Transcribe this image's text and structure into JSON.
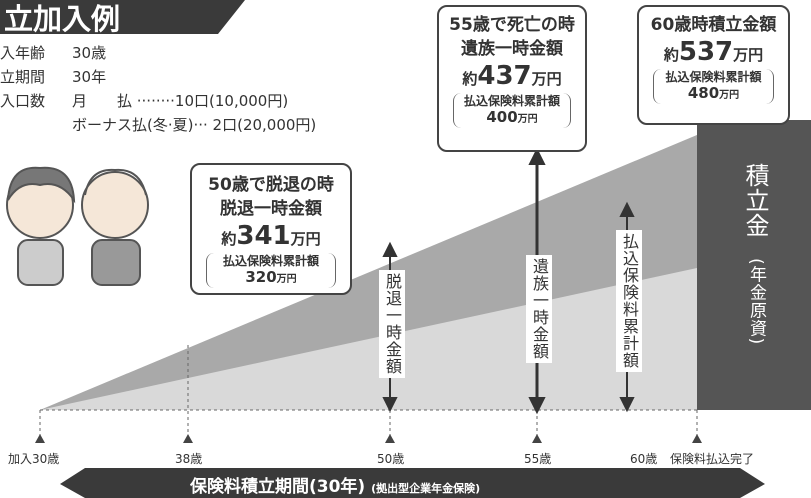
{
  "header": {
    "title": "立加入例"
  },
  "conditions": [
    {
      "label": "入年齢",
      "value": "30歳"
    },
    {
      "label": "立期間",
      "value": "30年"
    },
    {
      "label": "入口数",
      "value": "月　　払 ········10口(10,000円)"
    },
    {
      "value": "ボーナス払(冬·夏)··· 2口(20,000円)"
    }
  ],
  "callouts": [
    {
      "line1": "50歳で脱退の時",
      "line2": "脱退一時金額",
      "prefix": "約",
      "amount": "341",
      "unit": "万円",
      "sub_label": "払込保険料累計額",
      "sub_amount": "320",
      "sub_unit": "万円"
    },
    {
      "line1": "55歳で死亡の時",
      "line2": "遺族一時金額",
      "prefix": "約",
      "amount": "437",
      "unit": "万円",
      "sub_label": "払込保険料累計額",
      "sub_amount": "400",
      "sub_unit": "万円"
    },
    {
      "line1": "60歳時積立金額",
      "prefix": "約",
      "amount": "537",
      "unit": "万円",
      "sub_label": "払込保険料累計額",
      "sub_amount": "480",
      "sub_unit": "万円"
    }
  ],
  "vertical_labels": [
    "脱退一時金額",
    "遺族一時金額",
    "払込保険料累計額",
    "積立金",
    "(年金原資)"
  ],
  "axis_labels": [
    "加入30歳",
    "38歳",
    "50歳",
    "55歳",
    "60歳",
    "保険料払込完了"
  ],
  "period": {
    "title": "保険料積立期間(30年)",
    "note": "(拠出型企業年金保険)"
  }
}
